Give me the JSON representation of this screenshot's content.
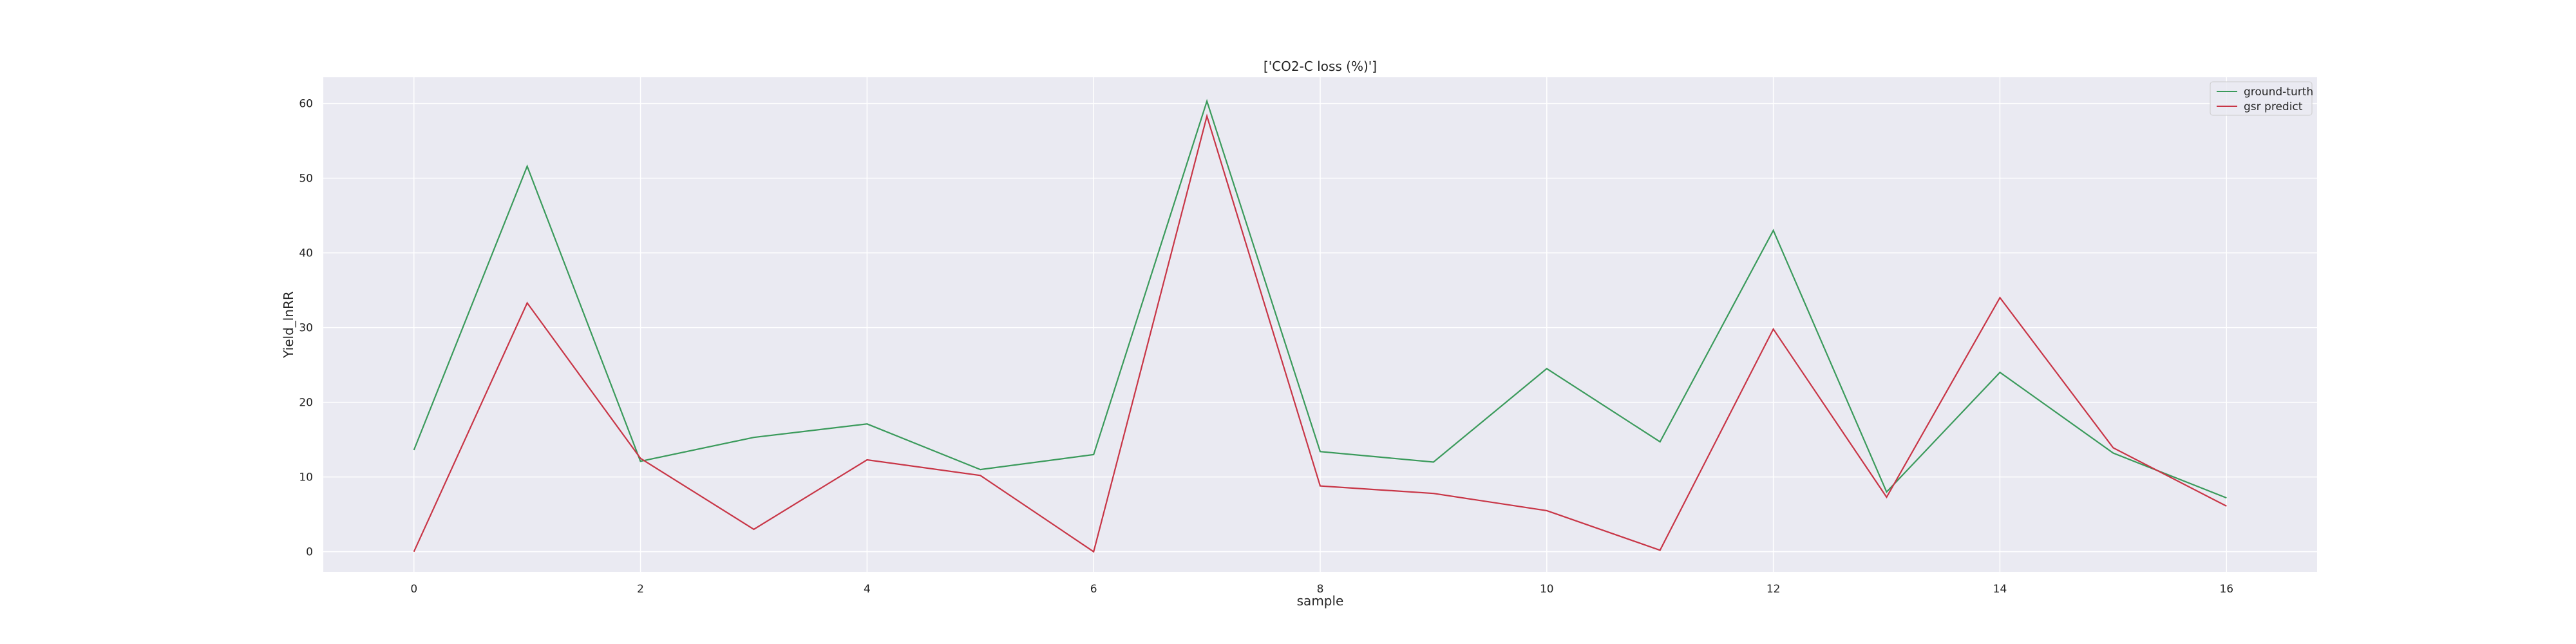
{
  "chart_data": {
    "type": "line",
    "title": "['CO2-C loss (%)']",
    "xlabel": "sample",
    "ylabel": "Yield_lnRR",
    "x": [
      0,
      1,
      2,
      3,
      4,
      5,
      6,
      7,
      8,
      9,
      10,
      11,
      12,
      13,
      14,
      15,
      16
    ],
    "xlim": [
      -0.8,
      16.8
    ],
    "ylim": [
      -2.7,
      63.5
    ],
    "xticks": [
      0,
      2,
      4,
      6,
      8,
      10,
      12,
      14,
      16
    ],
    "yticks": [
      0,
      10,
      20,
      30,
      40,
      50,
      60
    ],
    "grid": true,
    "legend_position": "top-right",
    "series": [
      {
        "name": "ground-turth",
        "color": "#3a9a5b",
        "values": [
          13.6,
          51.6,
          12.1,
          15.3,
          17.1,
          11.0,
          13.0,
          60.3,
          13.4,
          12.0,
          24.5,
          14.7,
          43.0,
          8.0,
          24.0,
          13.2,
          7.2
        ]
      },
      {
        "name": "gsr predict",
        "color": "#c83546",
        "values": [
          0.0,
          33.3,
          12.5,
          3.0,
          12.3,
          10.2,
          0.0,
          58.3,
          8.8,
          7.8,
          5.5,
          0.2,
          29.8,
          7.3,
          34.0,
          13.9,
          6.1
        ]
      }
    ]
  }
}
